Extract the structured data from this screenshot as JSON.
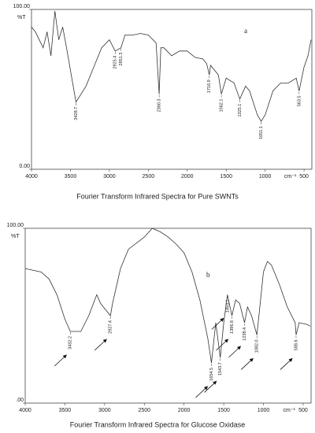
{
  "chart_data": [
    {
      "type": "line",
      "caption": "Fourier Transform Infrared Spectra for Pure SWNTs",
      "annotation": "a",
      "x_label": "cm⁻¹",
      "y_label": "%T",
      "color": "#333333",
      "xlim": [
        4000,
        400
      ],
      "xticks": [
        4000,
        3500,
        3000,
        2500,
        2000,
        1500,
        1000,
        500
      ],
      "ylim": [
        0,
        100
      ],
      "yticks": [
        {
          "value": 0,
          "label": "0.00"
        },
        {
          "value": 100,
          "label": "100.00"
        }
      ],
      "x": [
        4000,
        3950,
        3850,
        3800,
        3750,
        3700,
        3650,
        3600,
        3550,
        3500,
        3428.7,
        3300,
        3200,
        3100,
        3000,
        2925.4,
        2851.3,
        2800,
        2700,
        2600,
        2500,
        2400,
        2360.3,
        2340,
        2300,
        2200,
        2100,
        2000,
        1900,
        1800,
        1750,
        1716.9,
        1700,
        1600,
        1562.1,
        1500,
        1400,
        1325.1,
        1250,
        1200,
        1100,
        1051.1,
        1000,
        900,
        800,
        700,
        600,
        563.5,
        500,
        450,
        410
      ],
      "values": [
        89,
        86,
        76,
        86,
        71,
        99,
        81,
        89,
        76,
        62,
        42,
        52,
        64,
        76,
        81,
        74,
        76,
        84,
        84,
        85,
        84,
        79,
        47,
        76,
        76,
        71,
        74,
        74,
        70,
        69,
        66,
        59,
        65,
        59,
        47,
        57,
        54,
        44,
        52,
        49,
        34,
        30,
        34,
        49,
        54,
        54,
        57,
        49,
        64,
        71,
        81
      ],
      "peaks": [
        {
          "label": "3428.7",
          "x": 3428.7,
          "y": 42
        },
        {
          "label": "2925.4",
          "x": 2925.4,
          "y": 74
        },
        {
          "label": "2851.3",
          "x": 2851.3,
          "y": 76
        },
        {
          "label": "2360.3",
          "x": 2360.3,
          "y": 47
        },
        {
          "label": "1716.9",
          "x": 1716.9,
          "y": 59
        },
        {
          "label": "1562.1",
          "x": 1562.1,
          "y": 47
        },
        {
          "label": "1325.1",
          "x": 1325.1,
          "y": 44
        },
        {
          "label": "1051.1",
          "x": 1051.1,
          "y": 30
        },
        {
          "label": "563.5",
          "x": 563.5,
          "y": 49
        }
      ]
    },
    {
      "type": "line",
      "caption": "Fourier Transform Infrared Spectra for Glucose Oxidase",
      "annotation": "b",
      "x_label": "cm⁻¹",
      "y_label": "%T",
      "color": "#333333",
      "xlim": [
        4000,
        400
      ],
      "xticks": [
        4000,
        3500,
        3000,
        2500,
        2000,
        1500,
        1000,
        500
      ],
      "ylim": [
        0,
        100
      ],
      "yticks": [
        {
          "value": 0,
          "label": ".00"
        },
        {
          "value": 100,
          "label": "100.00"
        }
      ],
      "x": [
        4000,
        3800,
        3700,
        3600,
        3500,
        3432.2,
        3300,
        3200,
        3100,
        3050,
        2927.4,
        2900,
        2800,
        2700,
        2500,
        2400,
        2300,
        2200,
        2100,
        2000,
        1900,
        1800,
        1700,
        1654.5,
        1600,
        1543.7,
        1500,
        1453.1,
        1420,
        1396.8,
        1350,
        1300,
        1238.4,
        1200,
        1150,
        1082.0,
        1050,
        1000,
        950,
        900,
        800,
        700,
        600,
        588.6,
        550,
        450,
        410
      ],
      "values": [
        77,
        75,
        71,
        62,
        48,
        41,
        41,
        50,
        62,
        57,
        50,
        57,
        77,
        88,
        95,
        100,
        98,
        95,
        91,
        86,
        75,
        59,
        37,
        23,
        46,
        26,
        46,
        62,
        55,
        50,
        59,
        57,
        46,
        55,
        50,
        39,
        53,
        75,
        81,
        79,
        68,
        55,
        46,
        39,
        46,
        45,
        44
      ],
      "peaks": [
        {
          "label": "3432.2",
          "x": 3432.2,
          "y": 41
        },
        {
          "label": "2927.4",
          "x": 2927.4,
          "y": 50
        },
        {
          "label": "1654.5",
          "x": 1654.5,
          "y": 23
        },
        {
          "label": "1543.7",
          "x": 1543.7,
          "y": 26
        },
        {
          "label": "1453.1",
          "x": 1453.1,
          "y": 62
        },
        {
          "label": "1396.8",
          "x": 1396.8,
          "y": 50
        },
        {
          "label": "1238.4",
          "x": 1238.4,
          "y": 46
        },
        {
          "label": "1082.0",
          "x": 1082.0,
          "y": 39
        },
        {
          "label": "588.6",
          "x": 588.6,
          "y": 39
        }
      ]
    }
  ]
}
